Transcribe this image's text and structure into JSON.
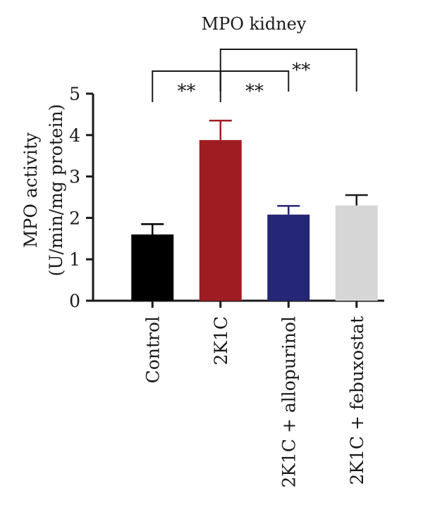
{
  "chart_data": {
    "type": "bar",
    "title": "MPO kidney",
    "ylabel_line1": "MPO activity",
    "ylabel_line2": "(U/min/mg protein)",
    "xlabel": "",
    "ylim": [
      0,
      5
    ],
    "yticks": [
      0,
      1,
      2,
      3,
      4,
      5
    ],
    "grid": false,
    "categories": [
      "Control",
      "2K1C",
      "2K1C + allopurinol",
      "2K1C + febuxostat"
    ],
    "values": [
      1.6,
      3.88,
      2.08,
      2.3
    ],
    "errors": [
      0.25,
      0.47,
      0.21,
      0.25
    ],
    "colors": [
      "#000000",
      "#a01c23",
      "#262676",
      "#d6d6d6"
    ],
    "error_colors": [
      "#000000",
      "#a01c23",
      "#262676",
      "#1a1a1a"
    ],
    "significance": [
      {
        "from": 0,
        "to": 1,
        "label": "**",
        "level": 1
      },
      {
        "from": 1,
        "to": 2,
        "label": "**",
        "level": 1
      },
      {
        "from": 1,
        "to": 3,
        "label": "**",
        "level": 2
      }
    ]
  }
}
